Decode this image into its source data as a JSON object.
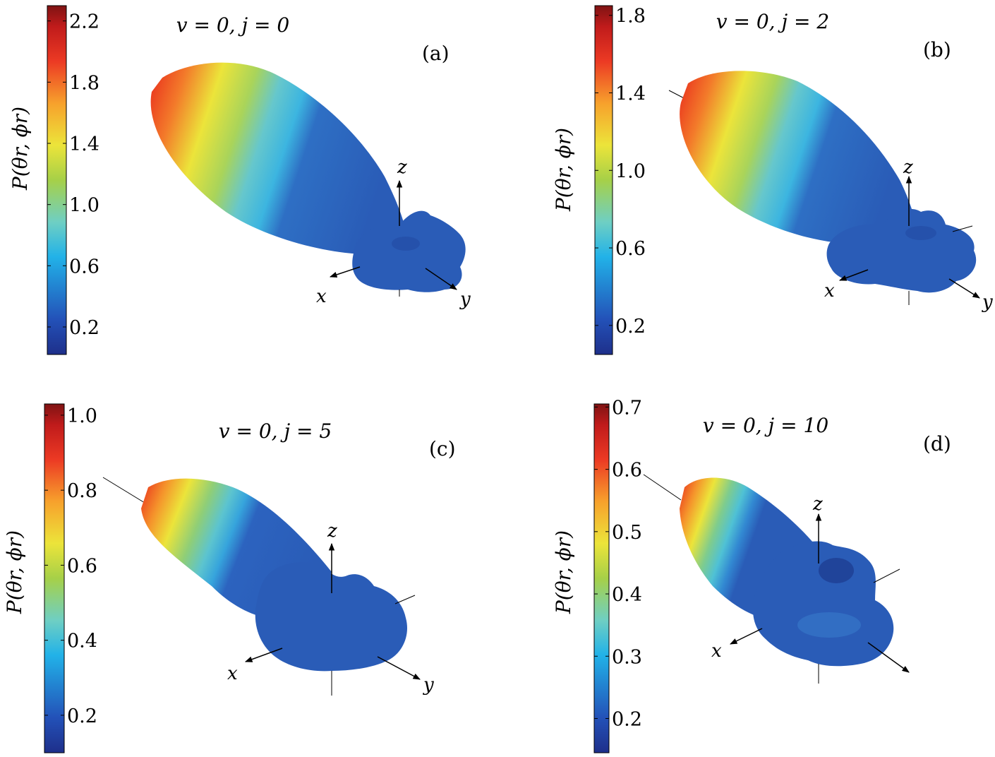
{
  "chart_data": [
    {
      "type": "surface3d",
      "panel_label": "(a)",
      "title": "v = 0, j = 0",
      "colorbar": {
        "label": "P(θr, ϕr)",
        "ticks": [
          0.2,
          0.6,
          1.0,
          1.4,
          1.8,
          2.2
        ],
        "range": [
          0.02,
          2.3
        ]
      },
      "axes": {
        "x": "x",
        "y": "y",
        "z": "z"
      }
    },
    {
      "type": "surface3d",
      "panel_label": "(b)",
      "title": "v = 0, j = 2",
      "colorbar": {
        "label": "P(θr, ϕr)",
        "ticks": [
          0.2,
          0.6,
          1.0,
          1.4,
          1.8
        ],
        "range": [
          0.05,
          1.85
        ]
      },
      "axes": {
        "x": "x",
        "y": "y",
        "z": "z"
      }
    },
    {
      "type": "surface3d",
      "panel_label": "(c)",
      "title": "v = 0, j = 5",
      "colorbar": {
        "label": "P(θr, ϕr)",
        "ticks": [
          0.2,
          0.4,
          0.6,
          0.8,
          1.0
        ],
        "range": [
          0.1,
          1.03
        ]
      },
      "axes": {
        "x": "x",
        "y": "y",
        "z": "z"
      }
    },
    {
      "type": "surface3d",
      "panel_label": "(d)",
      "title": "v = 0, j = 10",
      "colorbar": {
        "label": "P(θr, ϕr)",
        "ticks": [
          0.2,
          0.3,
          0.4,
          0.5,
          0.6,
          0.7
        ],
        "range": [
          0.145,
          0.705
        ]
      },
      "axes": {
        "x": "x",
        "y": "",
        "z": "z"
      }
    }
  ],
  "colormap": [
    "#1e2f8a",
    "#2351b8",
    "#22b2e8",
    "#6fcfc3",
    "#a6d048",
    "#ece43a",
    "#f7a12c",
    "#ec3a24",
    "#c01b1b",
    "#7f1313"
  ]
}
